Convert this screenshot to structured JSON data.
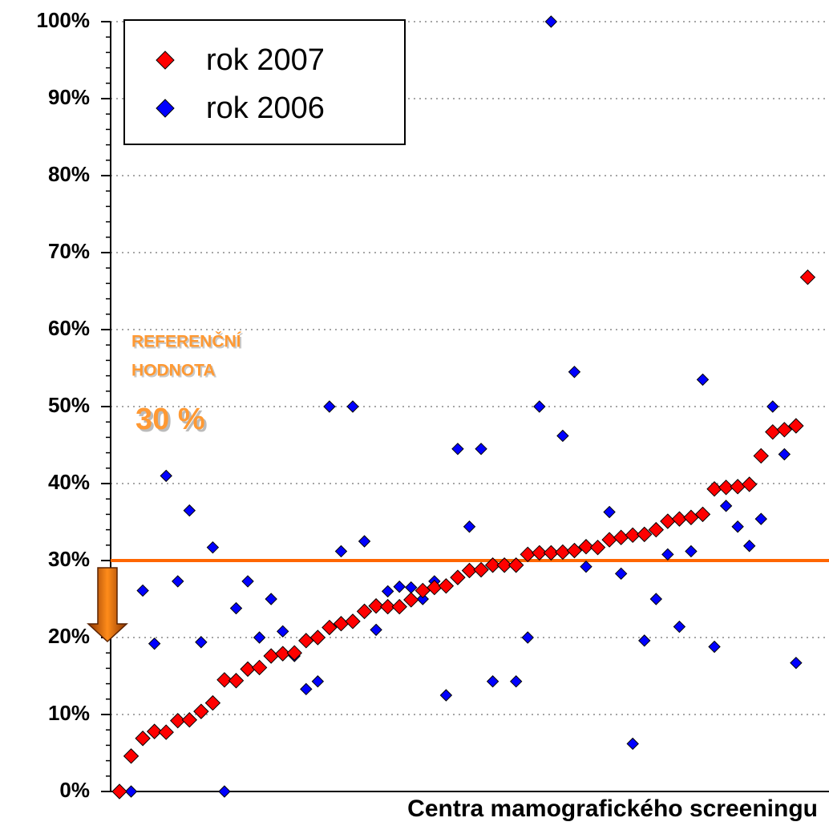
{
  "chart_data": {
    "type": "scatter",
    "x_label": "Centra mamografického screeningu",
    "categories": [
      null,
      null,
      null,
      null,
      null,
      null,
      null,
      null,
      null,
      null,
      null,
      null,
      null,
      null,
      null,
      null,
      null,
      null,
      null,
      null,
      null,
      null,
      null,
      null,
      null,
      null,
      null,
      null,
      null,
      null,
      null,
      null,
      null,
      null,
      null,
      null,
      null,
      null,
      null,
      null,
      null,
      null,
      null,
      null,
      null,
      null,
      null,
      null,
      null,
      null,
      null,
      null,
      null,
      null,
      null,
      null,
      null,
      null,
      null,
      null
    ],
    "series": [
      {
        "name": "rok 2007",
        "color": "#ff0000",
        "values": [
          0,
          4.6,
          6.9,
          7.8,
          7.7,
          9.2,
          9.3,
          10.4,
          11.5,
          14.5,
          14.4,
          15.9,
          16.1,
          17.6,
          17.9,
          18.0,
          19.6,
          20.0,
          21.3,
          21.8,
          22.1,
          23.4,
          24.1,
          24.0,
          24.0,
          24.9,
          26.1,
          26.5,
          26.7,
          27.8,
          28.7,
          28.8,
          29.4,
          29.4,
          29.4,
          30.8,
          31.0,
          31.0,
          31.1,
          31.3,
          31.8,
          31.7,
          32.7,
          33.0,
          33.3,
          33.4,
          34.0,
          35.1,
          35.4,
          35.6,
          36.0,
          39.3,
          39.5,
          39.6,
          39.9,
          43.6,
          46.7,
          47.0,
          47.5,
          66.8
        ]
      },
      {
        "name": "rok 2006",
        "color": "#0000ff",
        "values": [
          null,
          0,
          26.1,
          19.2,
          41.0,
          27.3,
          36.5,
          19.4,
          31.7,
          0,
          23.8,
          27.3,
          20.0,
          25.0,
          20.8,
          17.6,
          13.3,
          14.3,
          50.0,
          31.2,
          50.0,
          32.5,
          21.0,
          26.0,
          26.6,
          26.5,
          25.0,
          27.3,
          12.5,
          44.5,
          34.4,
          44.5,
          14.3,
          null,
          14.3,
          20.0,
          50.0,
          100,
          46.2,
          54.5,
          29.2,
          31.5,
          36.3,
          28.3,
          6.2,
          19.6,
          25.0,
          30.8,
          21.4,
          31.2,
          53.5,
          18.8,
          37.1,
          34.4,
          31.9,
          35.4,
          50.0,
          43.8,
          16.7,
          null
        ]
      }
    ],
    "ylim": [
      0,
      100
    ],
    "yticks": [
      {
        "value": 0,
        "label": "0%"
      },
      {
        "value": 10,
        "label": "10%"
      },
      {
        "value": 20,
        "label": "20%"
      },
      {
        "value": 30,
        "label": "30%"
      },
      {
        "value": 40,
        "label": "40%"
      },
      {
        "value": 50,
        "label": "50%"
      },
      {
        "value": 60,
        "label": "60%"
      },
      {
        "value": 70,
        "label": "70%"
      },
      {
        "value": 80,
        "label": "80%"
      },
      {
        "value": 90,
        "label": "90%"
      },
      {
        "value": 100,
        "label": "100%"
      }
    ],
    "grid": true,
    "legend": "upper left",
    "reference_line": {
      "value": 30,
      "label": "30 %",
      "color": "#ff6600"
    },
    "annotation": [
      "REFERENČNÍ",
      "HODNOTA"
    ]
  }
}
